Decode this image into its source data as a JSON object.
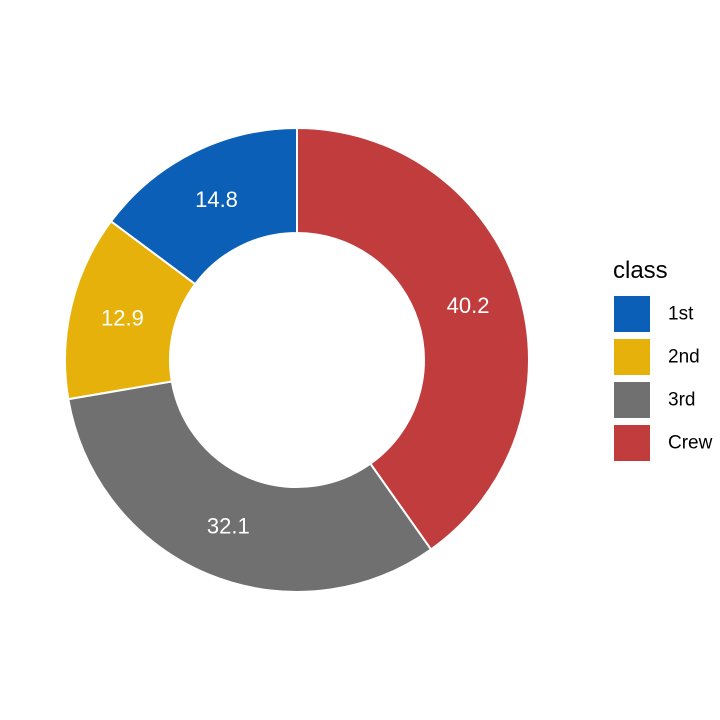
{
  "chart_data": {
    "type": "pie",
    "style": "donut",
    "categories": [
      "1st",
      "2nd",
      "3rd",
      "Crew"
    ],
    "values": [
      14.8,
      12.9,
      32.1,
      40.2
    ],
    "labels": [
      "14.8",
      "12.9",
      "32.1",
      "40.2"
    ],
    "colors": [
      "#0b5fb7",
      "#e6b10a",
      "#707070",
      "#c13c3c"
    ],
    "legend": {
      "title": "class",
      "position": "right"
    }
  }
}
